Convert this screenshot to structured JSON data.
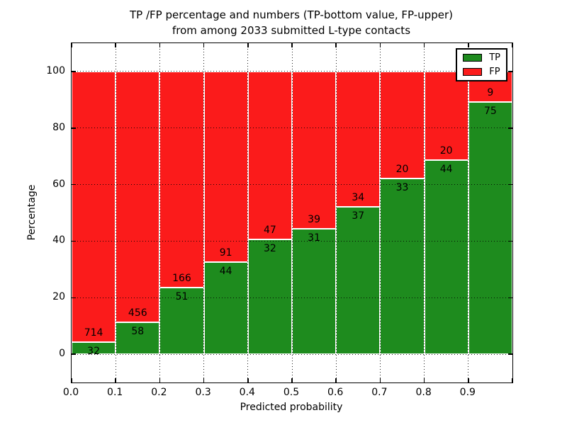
{
  "chart_data": {
    "type": "bar",
    "stacked": true,
    "title_line1": "TP /FP percentage and numbers (TP-bottom value, FP-upper)",
    "title_line2": "from among 2033 submitted L-type contacts",
    "xlabel": "Predicted probability",
    "ylabel": "Percentage",
    "x_tick_labels": [
      "0.0",
      "0.1",
      "0.2",
      "0.3",
      "0.4",
      "0.5",
      "0.6",
      "0.7",
      "0.8",
      "0.9"
    ],
    "y_tick_values": [
      0,
      20,
      40,
      60,
      80,
      100
    ],
    "xlim": [
      0.0,
      1.0
    ],
    "ylim": [
      -10,
      110
    ],
    "bar_width_x": 0.1,
    "grid": true,
    "legend_position": "upper right",
    "total_contacts": 2033,
    "series": [
      {
        "name": "TP",
        "color": "#1e8b1e",
        "position": "bottom",
        "counts": [
          32,
          58,
          51,
          44,
          32,
          31,
          37,
          33,
          44,
          75
        ]
      },
      {
        "name": "FP",
        "color": "#fb1b1b",
        "position": "top",
        "counts": [
          714,
          456,
          166,
          91,
          47,
          39,
          34,
          20,
          20,
          9
        ]
      }
    ],
    "bar_edge_color": "#ffffff",
    "tp_percentages": [
      4.29,
      11.28,
      23.5,
      32.59,
      40.51,
      44.29,
      52.11,
      62.26,
      68.75,
      89.29
    ]
  }
}
